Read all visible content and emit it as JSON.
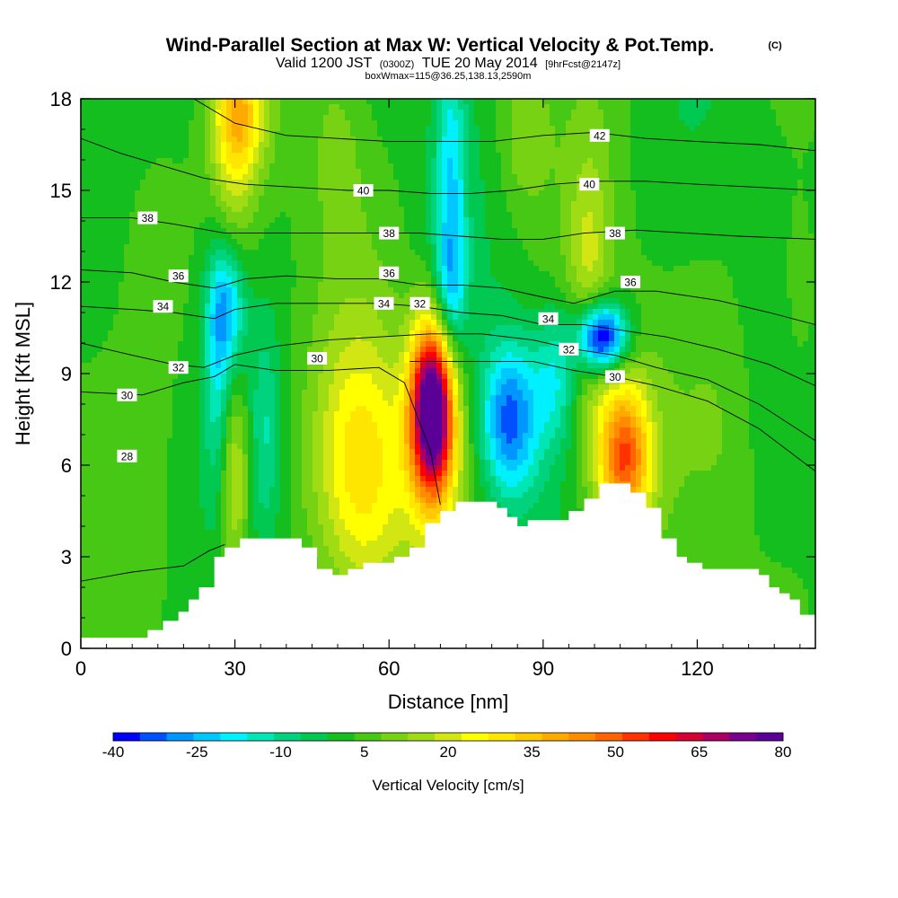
{
  "header": {
    "title_main": "Wind-Parallel Section at Max W: Vertical Velocity & Pot.Temp.",
    "title_mark": "(C)",
    "valid_prefix": "Valid 1200 JST",
    "valid_utc": "(0300Z)",
    "valid_date": "TUE 20 May 2014",
    "valid_fcst": "[9hrFcst@2147z]",
    "box_info": "boxWmax=115@36.25,138.13,2590m"
  },
  "chart_data": {
    "type": "heatmap",
    "xlabel": "Distance [nm]",
    "ylabel": "Height [Kft MSL]",
    "xlim": [
      0,
      143
    ],
    "ylim": [
      0,
      18
    ],
    "x_ticks": [
      "0",
      "30",
      "60",
      "90",
      "120"
    ],
    "y_ticks": [
      "0",
      "3",
      "6",
      "9",
      "12",
      "15",
      "18"
    ],
    "colorbar": {
      "label": "Vertical Velocity [cm/s]",
      "tick_labels": [
        "-40",
        "-25",
        "-10",
        "5",
        "20",
        "35",
        "50",
        "65",
        "80"
      ],
      "levels": [
        -40,
        -35,
        -30,
        -25,
        -20,
        -15,
        -10,
        -5,
        0,
        5,
        10,
        15,
        20,
        25,
        30,
        35,
        40,
        45,
        50,
        55,
        60,
        65,
        70,
        75,
        80
      ],
      "colors": [
        "#0000ff",
        "#0050ff",
        "#0096ff",
        "#00c8ff",
        "#00f0ff",
        "#00e6b4",
        "#00d27d",
        "#00c850",
        "#14be1e",
        "#46c814",
        "#78d214",
        "#a0dc14",
        "#d2e614",
        "#ffff00",
        "#ffe600",
        "#ffc800",
        "#ffaa00",
        "#ff8c00",
        "#ff6400",
        "#ff3200",
        "#ff0000",
        "#d70032",
        "#aa0064",
        "#78008c",
        "#5a0096"
      ]
    },
    "terrain_kft": [
      [
        0,
        0.35
      ],
      [
        2,
        0.35
      ],
      [
        4,
        0.35
      ],
      [
        6,
        0.35
      ],
      [
        8,
        0.35
      ],
      [
        10,
        0.35
      ],
      [
        12,
        0.35
      ],
      [
        13,
        0.6
      ],
      [
        16,
        0.9
      ],
      [
        19,
        1.2
      ],
      [
        21,
        1.6
      ],
      [
        23,
        2.0
      ],
      [
        26,
        3.0
      ],
      [
        28,
        3.3
      ],
      [
        31,
        3.6
      ],
      [
        34,
        3.6
      ],
      [
        37,
        3.6
      ],
      [
        40,
        3.6
      ],
      [
        42,
        3.6
      ],
      [
        43,
        3.3
      ],
      [
        46,
        2.6
      ],
      [
        49,
        2.4
      ],
      [
        52,
        2.6
      ],
      [
        55,
        2.8
      ],
      [
        58,
        2.8
      ],
      [
        61,
        3.0
      ],
      [
        64,
        3.3
      ],
      [
        67,
        4.1
      ],
      [
        70,
        4.5
      ],
      [
        73,
        4.8
      ],
      [
        76,
        4.8
      ],
      [
        79,
        4.8
      ],
      [
        81,
        4.6
      ],
      [
        83,
        4.3
      ],
      [
        85,
        4.0
      ],
      [
        87,
        4.2
      ],
      [
        90,
        4.2
      ],
      [
        93,
        4.2
      ],
      [
        95,
        4.5
      ],
      [
        98,
        4.9
      ],
      [
        101,
        5.4
      ],
      [
        104,
        5.4
      ],
      [
        107,
        5.1
      ],
      [
        110,
        4.6
      ],
      [
        113,
        3.6
      ],
      [
        116,
        3.0
      ],
      [
        118,
        2.8
      ],
      [
        121,
        2.6
      ],
      [
        124,
        2.6
      ],
      [
        127,
        2.6
      ],
      [
        130,
        2.6
      ],
      [
        132,
        2.4
      ],
      [
        134,
        2.0
      ],
      [
        136,
        1.8
      ],
      [
        138,
        1.6
      ],
      [
        140,
        1.1
      ],
      [
        143,
        1.1
      ]
    ],
    "w_features": [
      {
        "x": 68.5,
        "y": 8.0,
        "sx": 3.0,
        "sy": 1.9,
        "amp": 80
      },
      {
        "x": 69.0,
        "y": 6.4,
        "sx": 4.0,
        "sy": 2.3,
        "amp": 22
      },
      {
        "x": 106.0,
        "y": 6.2,
        "sx": 3.5,
        "sy": 1.6,
        "amp": 40
      },
      {
        "x": 103.0,
        "y": 7.2,
        "sx": 5.5,
        "sy": 2.5,
        "amp": 14
      },
      {
        "x": 55.0,
        "y": 5.8,
        "sx": 6.5,
        "sy": 3.2,
        "amp": 28
      },
      {
        "x": 31.0,
        "y": 17.5,
        "sx": 3.5,
        "sy": 1.5,
        "amp": 28
      },
      {
        "x": 29.5,
        "y": 14.5,
        "sx": 3.0,
        "sy": 3.5,
        "amp": 12
      },
      {
        "x": 30.0,
        "y": 5.6,
        "sx": 2.0,
        "sy": 2.2,
        "amp": 20
      },
      {
        "x": 99.0,
        "y": 12.8,
        "sx": 3.0,
        "sy": 2.5,
        "amp": 14
      },
      {
        "x": 50.0,
        "y": 16.5,
        "sx": 4.0,
        "sy": 2.5,
        "amp": 8
      },
      {
        "x": 86.0,
        "y": 16.8,
        "sx": 3.5,
        "sy": 1.8,
        "amp": 10
      },
      {
        "x": 101.5,
        "y": 10.2,
        "sx": 3.4,
        "sy": 0.8,
        "amp": -55
      },
      {
        "x": 83.5,
        "y": 7.5,
        "sx": 4.0,
        "sy": 1.8,
        "amp": -36
      },
      {
        "x": 28.5,
        "y": 11.3,
        "sx": 2.6,
        "sy": 1.6,
        "amp": -30
      },
      {
        "x": 26.5,
        "y": 8.8,
        "sx": 1.8,
        "sy": 2.6,
        "amp": -14
      },
      {
        "x": 72.0,
        "y": 14.5,
        "sx": 2.2,
        "sy": 4.5,
        "amp": -22
      },
      {
        "x": 72.0,
        "y": 11.8,
        "sx": 2.0,
        "sy": 1.2,
        "amp": -10
      },
      {
        "x": 92.5,
        "y": 8.8,
        "sx": 3.0,
        "sy": 1.6,
        "amp": -18
      },
      {
        "x": 36.0,
        "y": 7.0,
        "sx": 2.0,
        "sy": 2.5,
        "amp": -12
      },
      {
        "x": 14.0,
        "y": 13.8,
        "sx": 5.0,
        "sy": 3.0,
        "amp": 7
      },
      {
        "x": 140.0,
        "y": 11.5,
        "sx": 3.0,
        "sy": 2.5,
        "amp": 7
      },
      {
        "x": 126.0,
        "y": 7.0,
        "sx": 5.0,
        "sy": 3.0,
        "amp": 5
      }
    ],
    "theta_contours": [
      {
        "label": "28",
        "points": [
          [
            0,
            2.2
          ],
          [
            10,
            2.5
          ],
          [
            20,
            2.7
          ],
          [
            25,
            3.2
          ],
          [
            28,
            3.4
          ]
        ],
        "label_at": [
          9,
          6.3
        ]
      },
      {
        "label": "30",
        "points": [
          [
            0,
            8.4
          ],
          [
            12,
            8.3
          ],
          [
            20,
            8.7
          ],
          [
            26,
            8.9
          ],
          [
            30,
            9.3
          ],
          [
            38,
            9.1
          ],
          [
            48,
            9.1
          ],
          [
            58,
            9.2
          ],
          [
            63,
            8.7
          ],
          [
            68,
            6.5
          ],
          [
            70,
            4.7
          ]
        ],
        "label_at": [
          9,
          8.3
        ]
      },
      {
        "label": "30",
        "points": [
          [
            64,
            9.4
          ],
          [
            70,
            9.4
          ],
          [
            78,
            9.4
          ],
          [
            88,
            9.4
          ],
          [
            96,
            9.1
          ],
          [
            104,
            8.9
          ],
          [
            112,
            8.6
          ],
          [
            122,
            8.1
          ],
          [
            132,
            7.2
          ],
          [
            143,
            5.8
          ]
        ],
        "label_at": [
          46,
          9.5
        ]
      },
      {
        "label": "32",
        "points": [
          [
            0,
            10.0
          ],
          [
            10,
            9.6
          ],
          [
            18,
            9.3
          ],
          [
            24,
            9.2
          ],
          [
            30,
            9.6
          ],
          [
            38,
            9.9
          ],
          [
            48,
            10.1
          ],
          [
            58,
            10.2
          ],
          [
            68,
            10.3
          ],
          [
            78,
            10.3
          ],
          [
            88,
            10.1
          ],
          [
            96,
            9.8
          ],
          [
            104,
            9.6
          ],
          [
            112,
            9.2
          ],
          [
            122,
            8.8
          ],
          [
            132,
            8.0
          ],
          [
            143,
            6.8
          ]
        ],
        "label_at": [
          19,
          9.2
        ]
      },
      {
        "label": "34",
        "points": [
          [
            0,
            11.2
          ],
          [
            10,
            11.1
          ],
          [
            18,
            11.0
          ],
          [
            26,
            10.8
          ],
          [
            30,
            11.1
          ],
          [
            38,
            11.3
          ],
          [
            48,
            11.3
          ],
          [
            58,
            11.3
          ],
          [
            66,
            11.2
          ],
          [
            74,
            11.0
          ],
          [
            82,
            10.9
          ],
          [
            90,
            10.6
          ],
          [
            98,
            10.6
          ],
          [
            106,
            10.4
          ],
          [
            114,
            10.2
          ],
          [
            124,
            9.8
          ],
          [
            134,
            9.3
          ],
          [
            143,
            8.6
          ]
        ],
        "label_at": [
          16,
          11.2
        ]
      },
      {
        "label": "36",
        "points": [
          [
            0,
            12.4
          ],
          [
            10,
            12.3
          ],
          [
            18,
            12.0
          ],
          [
            26,
            11.8
          ],
          [
            32,
            12.1
          ],
          [
            40,
            12.2
          ],
          [
            50,
            12.1
          ],
          [
            58,
            12.1
          ],
          [
            66,
            11.9
          ],
          [
            74,
            11.9
          ],
          [
            82,
            11.8
          ],
          [
            90,
            11.5
          ],
          [
            96,
            11.3
          ],
          [
            104,
            11.7
          ],
          [
            112,
            11.7
          ],
          [
            124,
            11.4
          ],
          [
            134,
            11.0
          ],
          [
            143,
            10.6
          ]
        ],
        "label_at": [
          19,
          12.2
        ]
      },
      {
        "label": "38",
        "points": [
          [
            0,
            14.1
          ],
          [
            10,
            14.1
          ],
          [
            18,
            13.9
          ],
          [
            28,
            13.6
          ],
          [
            38,
            13.6
          ],
          [
            48,
            13.6
          ],
          [
            58,
            13.6
          ],
          [
            66,
            13.6
          ],
          [
            74,
            13.5
          ],
          [
            82,
            13.4
          ],
          [
            90,
            13.4
          ],
          [
            98,
            13.6
          ],
          [
            108,
            13.7
          ],
          [
            118,
            13.6
          ],
          [
            128,
            13.5
          ],
          [
            143,
            13.4
          ]
        ],
        "label_at": [
          13,
          14.1
        ]
      },
      {
        "label": "40",
        "points": [
          [
            0,
            16.7
          ],
          [
            8,
            16.2
          ],
          [
            16,
            15.8
          ],
          [
            24,
            15.4
          ],
          [
            32,
            15.2
          ],
          [
            42,
            15.1
          ],
          [
            52,
            15.0
          ],
          [
            60,
            15.0
          ],
          [
            68,
            14.9
          ],
          [
            76,
            14.9
          ],
          [
            84,
            15.0
          ],
          [
            92,
            15.2
          ],
          [
            100,
            15.3
          ],
          [
            110,
            15.3
          ],
          [
            120,
            15.2
          ],
          [
            132,
            15.1
          ],
          [
            143,
            15.0
          ]
        ],
        "label_at": [
          55,
          15.0
        ]
      },
      {
        "label": "42",
        "points": [
          [
            22,
            18.0
          ],
          [
            30,
            17.2
          ],
          [
            40,
            16.8
          ],
          [
            50,
            16.7
          ],
          [
            60,
            16.6
          ],
          [
            70,
            16.6
          ],
          [
            80,
            16.6
          ],
          [
            90,
            16.8
          ],
          [
            100,
            16.9
          ],
          [
            110,
            16.7
          ],
          [
            120,
            16.6
          ],
          [
            132,
            16.5
          ],
          [
            143,
            16.3
          ]
        ],
        "label_at": [
          101,
          16.8
        ]
      }
    ],
    "extra_contour_labels": [
      {
        "label": "30",
        "at": [
          104,
          8.9
        ]
      },
      {
        "label": "32",
        "at": [
          95,
          9.8
        ]
      },
      {
        "label": "34",
        "at": [
          91,
          10.8
        ]
      },
      {
        "label": "32",
        "at": [
          66,
          11.3
        ]
      },
      {
        "label": "34",
        "at": [
          59,
          11.3
        ]
      },
      {
        "label": "36",
        "at": [
          60,
          12.3
        ]
      },
      {
        "label": "38",
        "at": [
          60,
          13.6
        ]
      },
      {
        "label": "36",
        "at": [
          107,
          12.0
        ]
      },
      {
        "label": "38",
        "at": [
          104,
          13.6
        ]
      },
      {
        "label": "40",
        "at": [
          99,
          15.2
        ]
      }
    ]
  }
}
